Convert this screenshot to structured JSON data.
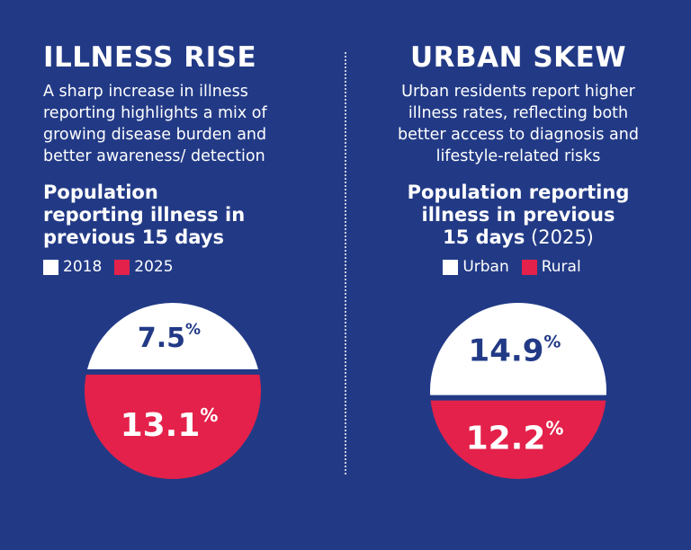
{
  "left_panel": {
    "title": "ILLNESS RISE",
    "subtitle_lines": [
      "A sharp increase in illness",
      "reporting highlights a mix of",
      "growing disease burden and",
      "better awareness/ detection"
    ],
    "chart_title_lines": [
      "Population",
      "reporting illness in",
      "previous 15 days"
    ],
    "legend": [
      {
        "label": "2018",
        "color": "#ffffff"
      },
      {
        "label": "2025",
        "color": "#e4214a"
      }
    ]
  },
  "right_panel": {
    "title": "URBAN SKEW",
    "subtitle_lines": [
      "Urban residents report higher",
      "illness rates, reflecting both",
      "better access to diagnosis and",
      "lifestyle-related risks"
    ],
    "chart_title_lines": [
      "Population reporting",
      "illness in previous",
      "15 days"
    ],
    "chart_title_suffix": " (2025)",
    "legend": [
      {
        "label": "Urban",
        "color": "#ffffff"
      },
      {
        "label": "Rural",
        "color": "#e4214a"
      }
    ]
  },
  "chart_data": [
    {
      "type": "bar",
      "title": "Population reporting illness in previous 15 days",
      "categories": [
        "2018",
        "2025"
      ],
      "values": [
        7.5,
        13.1
      ],
      "unit": "%",
      "colors": [
        "#ffffff",
        "#e4214a"
      ]
    },
    {
      "type": "bar",
      "title": "Population reporting illness in previous 15 days (2025)",
      "categories": [
        "Urban",
        "Rural"
      ],
      "values": [
        14.9,
        12.2
      ],
      "unit": "%",
      "colors": [
        "#ffffff",
        "#e4214a"
      ]
    }
  ],
  "colors": {
    "background": "#223a86",
    "accent_red": "#e4214a",
    "value_text_dark": "#223a86",
    "white": "#ffffff"
  }
}
